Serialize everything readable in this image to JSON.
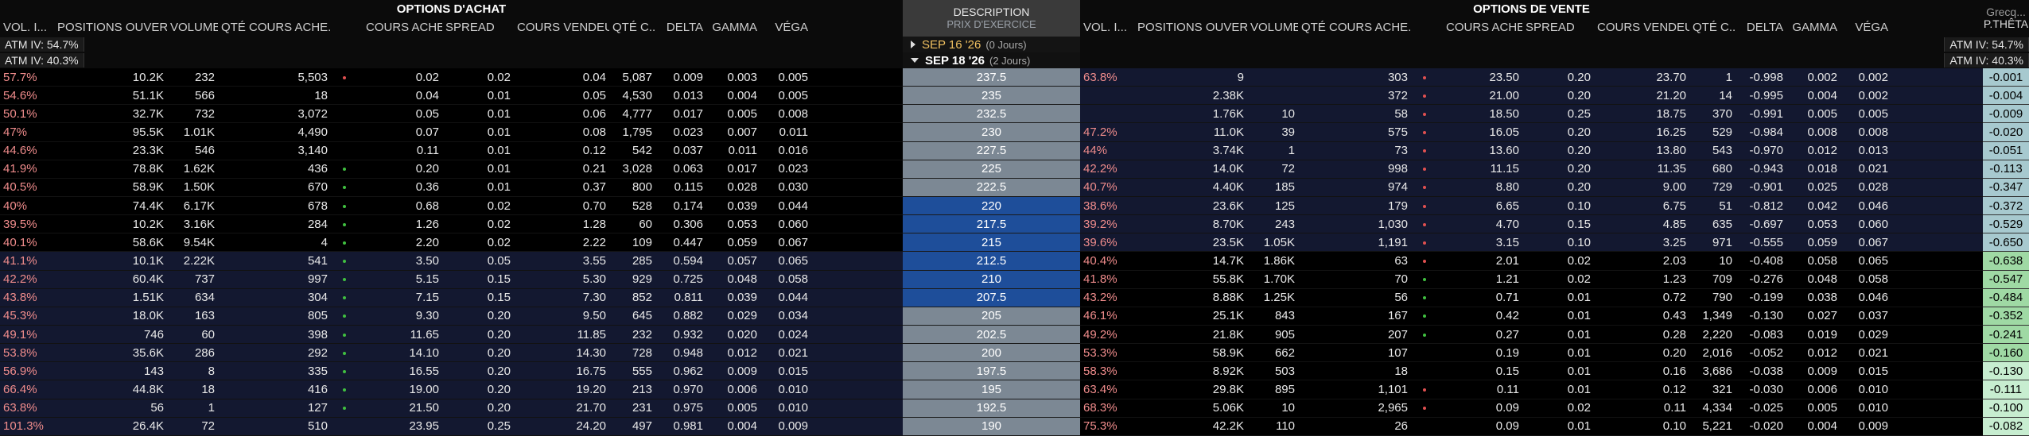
{
  "calls": {
    "title": "OPTIONS D'ACHAT",
    "columns": [
      "VOL. I...",
      "POSITIONS OUVERTE...",
      "VOLUME",
      "QTÉ COURS ACHE...",
      "",
      "COURS ACHETEUR",
      "SPREAD",
      "COURS VENDEUR",
      "QTÉ C...",
      "DELTA",
      "GAMMA",
      "VÉGA"
    ]
  },
  "puts": {
    "title": "OPTIONS DE VENTE",
    "columns": [
      "VOL. I...",
      "POSITIONS OUVERTE...",
      "VOLUME",
      "QTÉ COURS ACHE...",
      "",
      "COURS ACHETEUR",
      "SPREAD",
      "COURS VENDEUR",
      "QTÉ C...",
      "DELTA",
      "GAMMA",
      "VÉGA"
    ]
  },
  "greeks": {
    "title": "Grecq...",
    "column": "P.THÊTA"
  },
  "description": {
    "title": "DESCRIPTION",
    "subtitle": "PRIX D'EXERCICE"
  },
  "expiries": [
    {
      "label": "SEP 16 '26",
      "days": "(0 Jours)",
      "expanded": false
    },
    {
      "label": "SEP 18 '26",
      "days": "(2 Jours)",
      "expanded": true
    }
  ],
  "atm": {
    "calls_first": "ATM IV: 54.7%",
    "calls_second": "ATM IV: 40.3%",
    "puts_first": "ATM IV: 54.7%",
    "puts_second": "ATM IV: 40.3%"
  },
  "rows": [
    {
      "strike": "237.5",
      "c": [
        "57.7%",
        "10.2K",
        "232",
        "5,503",
        "0.02",
        "0.02",
        "0.04",
        "5,087",
        "0.009",
        "0.003",
        "0.005"
      ],
      "cdot": "#e05050",
      "p": [
        "63.8%",
        "9",
        "",
        "303",
        "23.50",
        "0.20",
        "23.70",
        "1",
        "-0.998",
        "0.002",
        "0.002"
      ],
      "pdot": "#e05050",
      "pth": "-0.001"
    },
    {
      "strike": "235",
      "c": [
        "54.6%",
        "51.1K",
        "566",
        "18",
        "0.04",
        "0.01",
        "0.05",
        "4,530",
        "0.013",
        "0.004",
        "0.005"
      ],
      "cdot": "",
      "p": [
        "",
        "2.38K",
        "",
        "372",
        "21.00",
        "0.20",
        "21.20",
        "14",
        "-0.995",
        "0.004",
        "0.002"
      ],
      "pdot": "#e05050",
      "pth": "-0.004"
    },
    {
      "strike": "232.5",
      "c": [
        "50.1%",
        "32.7K",
        "732",
        "3,072",
        "0.05",
        "0.01",
        "0.06",
        "4,777",
        "0.017",
        "0.005",
        "0.008"
      ],
      "cdot": "",
      "p": [
        "",
        "1.76K",
        "10",
        "58",
        "18.50",
        "0.25",
        "18.75",
        "370",
        "-0.991",
        "0.005",
        "0.005"
      ],
      "pdot": "#e05050",
      "pth": "-0.009"
    },
    {
      "strike": "230",
      "c": [
        "47%",
        "95.5K",
        "1.01K",
        "4,490",
        "0.07",
        "0.01",
        "0.08",
        "1,795",
        "0.023",
        "0.007",
        "0.011"
      ],
      "cdot": "",
      "p": [
        "47.2%",
        "11.0K",
        "39",
        "575",
        "16.05",
        "0.20",
        "16.25",
        "529",
        "-0.984",
        "0.008",
        "0.008"
      ],
      "pdot": "#e05050",
      "pth": "-0.020"
    },
    {
      "strike": "227.5",
      "c": [
        "44.6%",
        "23.3K",
        "546",
        "3,140",
        "0.11",
        "0.01",
        "0.12",
        "542",
        "0.037",
        "0.011",
        "0.016"
      ],
      "cdot": "",
      "p": [
        "44%",
        "3.74K",
        "1",
        "73",
        "13.60",
        "0.20",
        "13.80",
        "543",
        "-0.970",
        "0.012",
        "0.013"
      ],
      "pdot": "#e05050",
      "pth": "-0.051"
    },
    {
      "strike": "225",
      "c": [
        "41.9%",
        "78.8K",
        "1.62K",
        "436",
        "0.20",
        "0.01",
        "0.21",
        "3,028",
        "0.063",
        "0.017",
        "0.023"
      ],
      "cdot": "#40c040",
      "p": [
        "42.2%",
        "14.0K",
        "72",
        "998",
        "11.15",
        "0.20",
        "11.35",
        "680",
        "-0.943",
        "0.018",
        "0.021"
      ],
      "pdot": "#e05050",
      "pth": "-0.113"
    },
    {
      "strike": "222.5",
      "c": [
        "40.5%",
        "58.9K",
        "1.50K",
        "670",
        "0.36",
        "0.01",
        "0.37",
        "800",
        "0.115",
        "0.028",
        "0.030"
      ],
      "cdot": "#40c040",
      "p": [
        "40.7%",
        "4.40K",
        "185",
        "974",
        "8.80",
        "0.20",
        "9.00",
        "729",
        "-0.901",
        "0.025",
        "0.028"
      ],
      "pdot": "#e05050",
      "pth": "-0.347"
    },
    {
      "strike": "220",
      "c": [
        "40%",
        "74.4K",
        "6.17K",
        "678",
        "0.68",
        "0.02",
        "0.70",
        "528",
        "0.174",
        "0.039",
        "0.044"
      ],
      "cdot": "#40c040",
      "p": [
        "38.6%",
        "23.6K",
        "125",
        "179",
        "6.65",
        "0.10",
        "6.75",
        "51",
        "-0.812",
        "0.042",
        "0.046"
      ],
      "pdot": "#e05050",
      "pth": "-0.372"
    },
    {
      "strike": "217.5",
      "c": [
        "39.5%",
        "10.2K",
        "3.16K",
        "284",
        "1.26",
        "0.02",
        "1.28",
        "60",
        "0.306",
        "0.053",
        "0.060"
      ],
      "cdot": "#40c040",
      "p": [
        "39.2%",
        "8.70K",
        "243",
        "1,030",
        "4.70",
        "0.15",
        "4.85",
        "635",
        "-0.697",
        "0.053",
        "0.060"
      ],
      "pdot": "#e05050",
      "pth": "-0.529"
    },
    {
      "strike": "215",
      "c": [
        "40.1%",
        "58.6K",
        "9.54K",
        "4",
        "2.20",
        "0.02",
        "2.22",
        "109",
        "0.447",
        "0.059",
        "0.067"
      ],
      "cdot": "#40c040",
      "p": [
        "39.6%",
        "23.5K",
        "1.05K",
        "1,191",
        "3.15",
        "0.10",
        "3.25",
        "971",
        "-0.555",
        "0.059",
        "0.067"
      ],
      "pdot": "#e05050",
      "pth": "-0.650"
    },
    {
      "strike": "212.5",
      "c": [
        "41.1%",
        "10.1K",
        "2.22K",
        "541",
        "3.50",
        "0.05",
        "3.55",
        "285",
        "0.594",
        "0.057",
        "0.065"
      ],
      "cdot": "#40c040",
      "p": [
        "40.4%",
        "14.7K",
        "1.86K",
        "63",
        "2.01",
        "0.02",
        "2.03",
        "10",
        "-0.408",
        "0.058",
        "0.065"
      ],
      "pdot": "#e05050",
      "pth": "-0.638"
    },
    {
      "strike": "210",
      "c": [
        "42.2%",
        "60.4K",
        "737",
        "997",
        "5.15",
        "0.15",
        "5.30",
        "929",
        "0.725",
        "0.048",
        "0.058"
      ],
      "cdot": "#40c040",
      "p": [
        "41.8%",
        "55.8K",
        "1.70K",
        "70",
        "1.21",
        "0.02",
        "1.23",
        "709",
        "-0.276",
        "0.048",
        "0.058"
      ],
      "pdot": "#40c040",
      "pth": "-0.547"
    },
    {
      "strike": "207.5",
      "c": [
        "43.8%",
        "1.51K",
        "634",
        "304",
        "7.15",
        "0.15",
        "7.30",
        "852",
        "0.811",
        "0.039",
        "0.044"
      ],
      "cdot": "#40c040",
      "p": [
        "43.2%",
        "8.88K",
        "1.25K",
        "56",
        "0.71",
        "0.01",
        "0.72",
        "790",
        "-0.199",
        "0.038",
        "0.046"
      ],
      "pdot": "#40c040",
      "pth": "-0.484"
    },
    {
      "strike": "205",
      "c": [
        "45.3%",
        "18.0K",
        "163",
        "805",
        "9.30",
        "0.20",
        "9.50",
        "645",
        "0.882",
        "0.029",
        "0.034"
      ],
      "cdot": "#40c040",
      "p": [
        "46.1%",
        "25.1K",
        "843",
        "167",
        "0.42",
        "0.01",
        "0.43",
        "1,349",
        "-0.130",
        "0.027",
        "0.037"
      ],
      "pdot": "#40c040",
      "pth": "-0.352"
    },
    {
      "strike": "202.5",
      "c": [
        "49.1%",
        "746",
        "60",
        "398",
        "11.65",
        "0.20",
        "11.85",
        "232",
        "0.932",
        "0.020",
        "0.024"
      ],
      "cdot": "#40c040",
      "p": [
        "49.2%",
        "21.8K",
        "905",
        "207",
        "0.27",
        "0.01",
        "0.28",
        "2,220",
        "-0.083",
        "0.019",
        "0.029"
      ],
      "pdot": "#40c040",
      "pth": "-0.241"
    },
    {
      "strike": "200",
      "c": [
        "53.8%",
        "35.6K",
        "286",
        "292",
        "14.10",
        "0.20",
        "14.30",
        "728",
        "0.948",
        "0.012",
        "0.021"
      ],
      "cdot": "#40c040",
      "p": [
        "53.3%",
        "58.9K",
        "662",
        "107",
        "0.19",
        "0.01",
        "0.20",
        "2,016",
        "-0.052",
        "0.012",
        "0.021"
      ],
      "pdot": "",
      "pth": "-0.160"
    },
    {
      "strike": "197.5",
      "c": [
        "56.9%",
        "143",
        "8",
        "335",
        "16.55",
        "0.20",
        "16.75",
        "555",
        "0.962",
        "0.009",
        "0.015"
      ],
      "cdot": "#40c040",
      "p": [
        "58.3%",
        "8.92K",
        "503",
        "18",
        "0.15",
        "0.01",
        "0.16",
        "3,686",
        "-0.038",
        "0.009",
        "0.015"
      ],
      "pdot": "",
      "pth": "-0.130"
    },
    {
      "strike": "195",
      "c": [
        "66.4%",
        "44.8K",
        "18",
        "416",
        "19.00",
        "0.20",
        "19.20",
        "213",
        "0.970",
        "0.006",
        "0.010"
      ],
      "cdot": "#40c040",
      "p": [
        "63.4%",
        "29.8K",
        "895",
        "1,101",
        "0.11",
        "0.01",
        "0.12",
        "321",
        "-0.030",
        "0.006",
        "0.010"
      ],
      "pdot": "#e05050",
      "pth": "-0.111"
    },
    {
      "strike": "192.5",
      "c": [
        "63.8%",
        "56",
        "1",
        "127",
        "21.50",
        "0.20",
        "21.70",
        "231",
        "0.975",
        "0.005",
        "0.010"
      ],
      "cdot": "#40c040",
      "p": [
        "68.3%",
        "5.06K",
        "10",
        "2,965",
        "0.09",
        "0.02",
        "0.11",
        "4,334",
        "-0.025",
        "0.005",
        "0.010"
      ],
      "pdot": "#e05050",
      "pth": "-0.100"
    },
    {
      "strike": "190",
      "c": [
        "101.3%",
        "26.4K",
        "72",
        "510",
        "23.95",
        "0.25",
        "24.20",
        "497",
        "0.981",
        "0.004",
        "0.009"
      ],
      "cdot": "",
      "p": [
        "75.3%",
        "42.2K",
        "110",
        "26",
        "0.09",
        "0.01",
        "0.10",
        "5,221",
        "-0.020",
        "0.004",
        "0.009"
      ],
      "pdot": "",
      "pth": "-0.082"
    }
  ],
  "colors": {
    "itm_row_bg": "#131830",
    "otm_row_bg": "#000000",
    "strike_grey": "#7c8894",
    "strike_blue": "#1e4e9a",
    "grec_green": "#9fd9a4",
    "grec_green_light": "#c7edd0",
    "grec_teal": "#a7c9cf",
    "iv_color": "#f08c8c"
  }
}
